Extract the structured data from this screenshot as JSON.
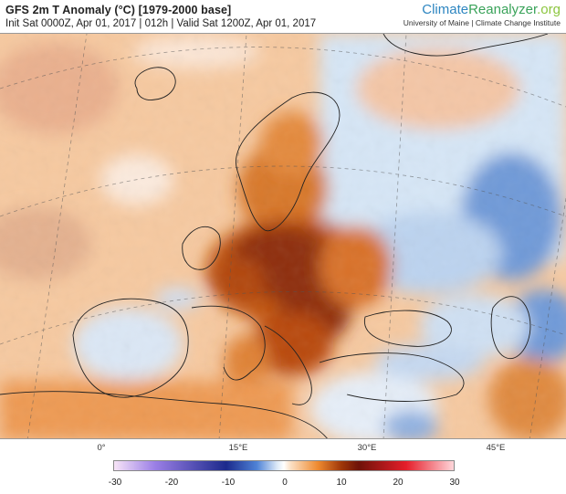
{
  "header": {
    "title": "GFS 2m T Anomaly (°C) [1979-2000 base]",
    "subtitle": "Init Sat 0000Z, Apr 01, 2017 | 012h | Valid Sat 1200Z, Apr 01, 2017",
    "brand_part1": "Climate",
    "brand_part2": "Reanalyzer",
    "brand_part3": ".org",
    "brand_subtitle": "University of Maine | Climate Change Institute"
  },
  "map": {
    "longitude_labels": [
      "0°",
      "15°E",
      "30°E",
      "45°E"
    ]
  },
  "colorbar": {
    "ticks": [
      "-30",
      "-20",
      "-10",
      "0",
      "10",
      "20",
      "30"
    ],
    "colors": {
      "cold_extreme": "#f7e4f7",
      "cold_purple": "#9b7fe6",
      "cold_navy": "#1c2a8c",
      "cold_blue": "#4e82d6",
      "cool_light": "#dce9f7",
      "neutral": "#ffffff",
      "warm_light": "#fbe0c4",
      "warm_orange": "#ee8a30",
      "warm_dark": "#9e3608",
      "hot_brown": "#6e1208",
      "hot_red": "#e51e2a",
      "hot_extreme": "#ffd6da"
    }
  }
}
